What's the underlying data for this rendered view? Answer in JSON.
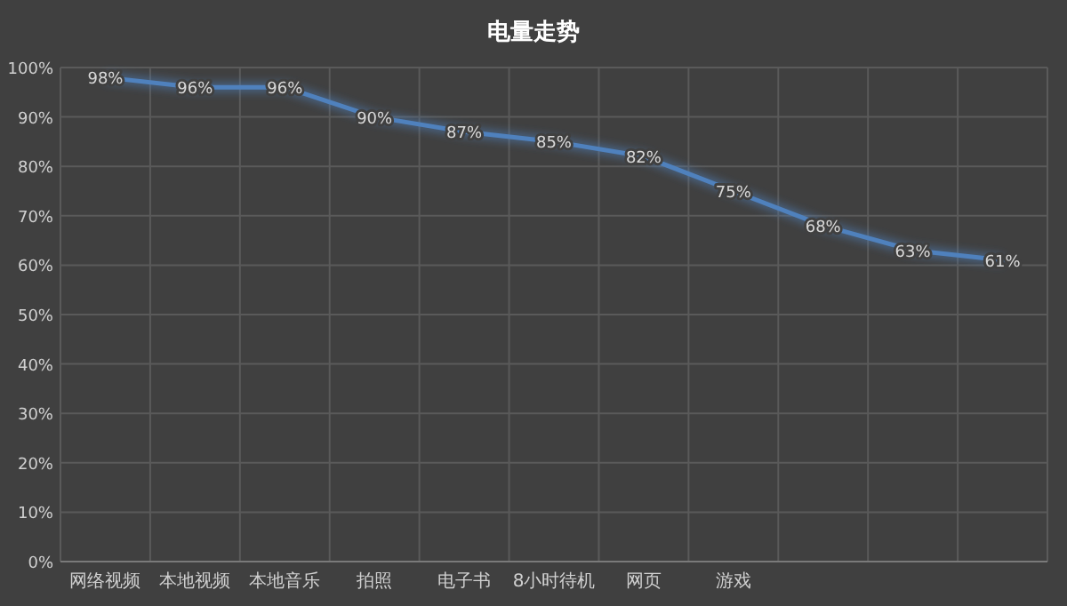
{
  "chart_data": {
    "type": "line",
    "title": "电量走势",
    "categories": [
      "网络视频",
      "本地视频",
      "本地音乐",
      "拍照",
      "电子书",
      "8小时待机",
      "网页",
      "游戏",
      null,
      null,
      null
    ],
    "series": [
      {
        "color": "#4f81bd",
        "values": [
          98,
          96,
          96,
          90,
          87,
          85,
          82,
          75,
          68,
          63,
          61
        ]
      }
    ],
    "value_labels": [
      "98%",
      "96%",
      "96%",
      "90%",
      "87%",
      "85%",
      "82%",
      "75%",
      "68%",
      "63%",
      "61%"
    ],
    "ylim": [
      0,
      100
    ],
    "yticks": [
      {
        "value": 0,
        "label": "0%"
      },
      {
        "value": 10,
        "label": "10%"
      },
      {
        "value": 20,
        "label": "20%"
      },
      {
        "value": 30,
        "label": "30%"
      },
      {
        "value": 40,
        "label": "40%"
      },
      {
        "value": 50,
        "label": "50%"
      },
      {
        "value": 60,
        "label": "60%"
      },
      {
        "value": 70,
        "label": "70%"
      },
      {
        "value": 80,
        "label": "80%"
      },
      {
        "value": 90,
        "label": "90%"
      },
      {
        "value": 100,
        "label": "100%"
      }
    ],
    "grid": true,
    "marker": "none",
    "line_style": "solid"
  }
}
